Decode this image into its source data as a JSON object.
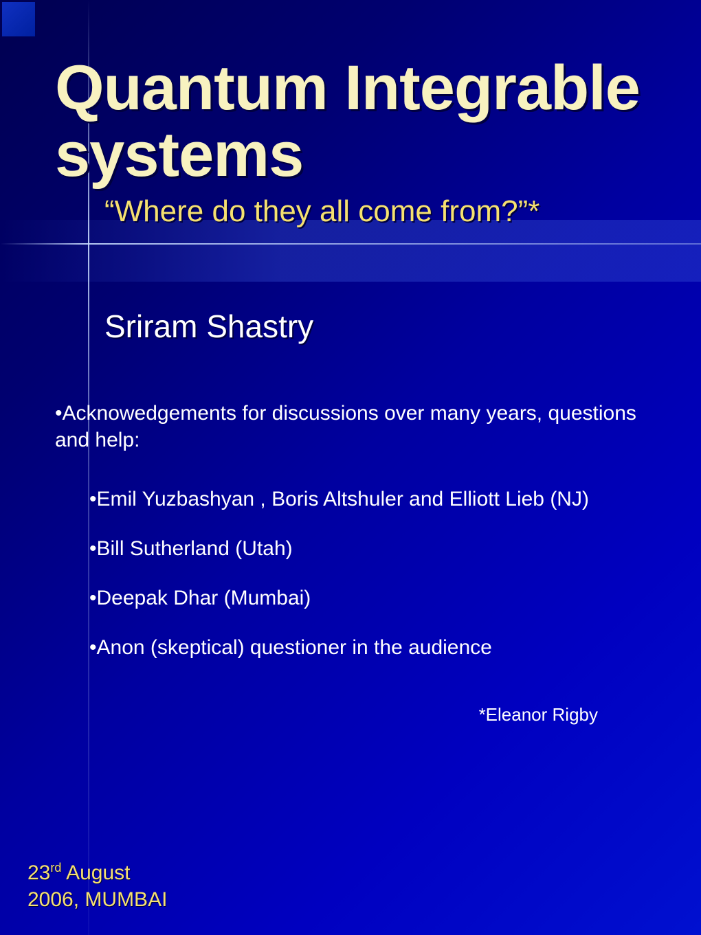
{
  "styling": {
    "background_gradient": [
      "#000050",
      "#000070",
      "#0000a0",
      "#0000c0",
      "#0010d0"
    ],
    "title_color": "#f8f2c0",
    "subtitle_color": "#f5e070",
    "body_text_color": "#ffffff",
    "date_color": "#f5e070",
    "shadow_color": "#000040",
    "title_fontsize": 92,
    "subtitle_fontsize": 44,
    "author_fontsize": 46,
    "body_fontsize": 30,
    "footnote_fontsize": 26,
    "line_color": "rgba(200,220,255,0.9)"
  },
  "title": "Quantum Integrable systems",
  "subtitle": "“Where do they all come from?”*",
  "author": "Sriram Shastry",
  "ack_intro": "•Acknowedgements for discussions over many years, questions and help:",
  "ack_items": [
    "•Emil Yuzbashyan , Boris Altshuler and Elliott Lieb (NJ)",
    "•Bill Sutherland (Utah)",
    "•Deepak Dhar (Mumbai)",
    "•Anon (skeptical) questioner in the audience"
  ],
  "footnote": "*Eleanor Rigby",
  "date": {
    "day": "23",
    "suffix": "rd",
    "month": " August",
    "line2": "2006, MUMBAI"
  }
}
